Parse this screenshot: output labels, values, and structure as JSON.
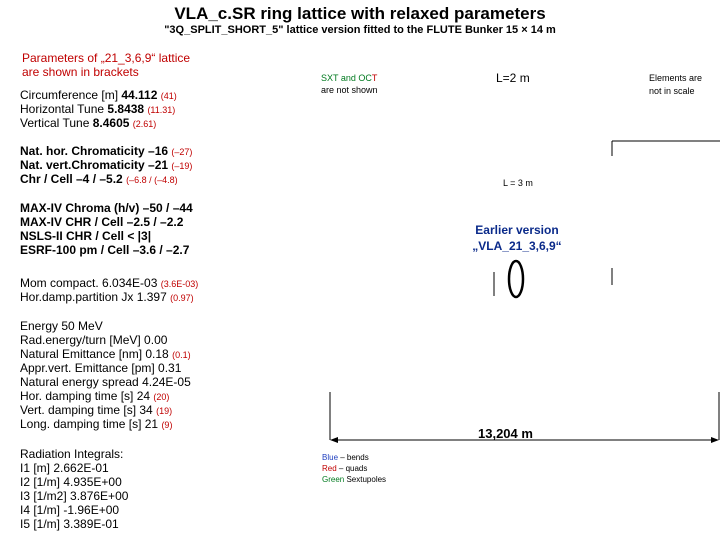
{
  "title": "VLA_c.SR ring lattice  with relaxed parameters",
  "subtitle": "\"3Q_SPLIT_SHORT_5\" lattice version  fitted to the FLUTE Bunker 15 × 14 m",
  "params_note": {
    "line1": "Parameters of „21_3,6,9“ lattice",
    "line2": "are shown in brackets"
  },
  "basic": [
    {
      "label": "Circumference [m] ",
      "value": "44.112",
      "bracket": "(41)"
    },
    {
      "label": "Horizontal Tune   ",
      "value": "5.8438",
      "bracket": "(11.31)"
    },
    {
      "label": "Vertical  Tune       ",
      "value": "8.4605",
      "bracket": "(2.61)"
    }
  ],
  "chromaticity": [
    {
      "label": "Nat. hor. Chromaticity –16",
      "bracket": "(–27)"
    },
    {
      "label": "Nat. vert.Chromaticity –21",
      "bracket": "(–19)"
    },
    {
      "label": "Chr / Cell –4 / –5.2",
      "bracket": "(–6.8 / (–4.8)"
    }
  ],
  "comparison": [
    "MAX-IV Chroma  (h/v) –50 / –44",
    "MAX-IV CHR / Cell     –2.5 / –2.2",
    "NSLS-II CHR / Cell  < |3|",
    "ESRF-100 pm / Cell  –3.6 / –2.7"
  ],
  "momcomp": [
    {
      "label": "Mom compact. 6.034E-03",
      "bracket": "(3.6E-03)"
    },
    {
      "label": "Hor.damp.partition Jx   1.397",
      "bracket": "(0.97)"
    }
  ],
  "beam": [
    {
      "label": "Energy          50 MeV",
      "bracket": ""
    },
    {
      "label": "Rad.energy/turn [MeV] 0.00",
      "bracket": ""
    },
    {
      "label": "Natural Emittance  [nm]  0.18",
      "bracket": "(0.1)"
    },
    {
      "label": "Appr.vert. Emittance  [pm] 0.31",
      "bracket": ""
    },
    {
      "label": "Natural energy spread  4.24E-05",
      "bracket": ""
    },
    {
      "label": "Hor.  damping time  [s]  24",
      "bracket": "(20)"
    },
    {
      "label": "Vert.  damping time [s]   34",
      "bracket": "(19)"
    },
    {
      "label": "Long.  damping time [s]  21",
      "bracket": "(9)"
    }
  ],
  "radiation": {
    "heading": "Radiation Integrals:",
    "rows": [
      "I1   [m]         2.662E-01",
      "I2  [1/m]       4.935E+00",
      "I3  [1/m2]  3.876E+00",
      "I4  [1/m]   -1.96E+00",
      "I5  [1/m]     3.389E-01"
    ]
  },
  "sxt_note": {
    "part1": "SXT and OC",
    "part2": "T",
    "line2": "are not shown"
  },
  "l2": "L=2 m",
  "l3": "L = 3 m",
  "elements_note": {
    "line1": "Elements are",
    "line2": "not in scale"
  },
  "earlier": {
    "line1": "Earlier version",
    "line2": "„VLA_21_3,6,9“"
  },
  "width_label": "13,204 m",
  "legend": {
    "blue": {
      "name": "Blue",
      "desc": " – bends"
    },
    "red": {
      "name": "Red",
      "desc": " – quads"
    },
    "green": {
      "name": "Green",
      "desc": " Sextupoles"
    }
  }
}
